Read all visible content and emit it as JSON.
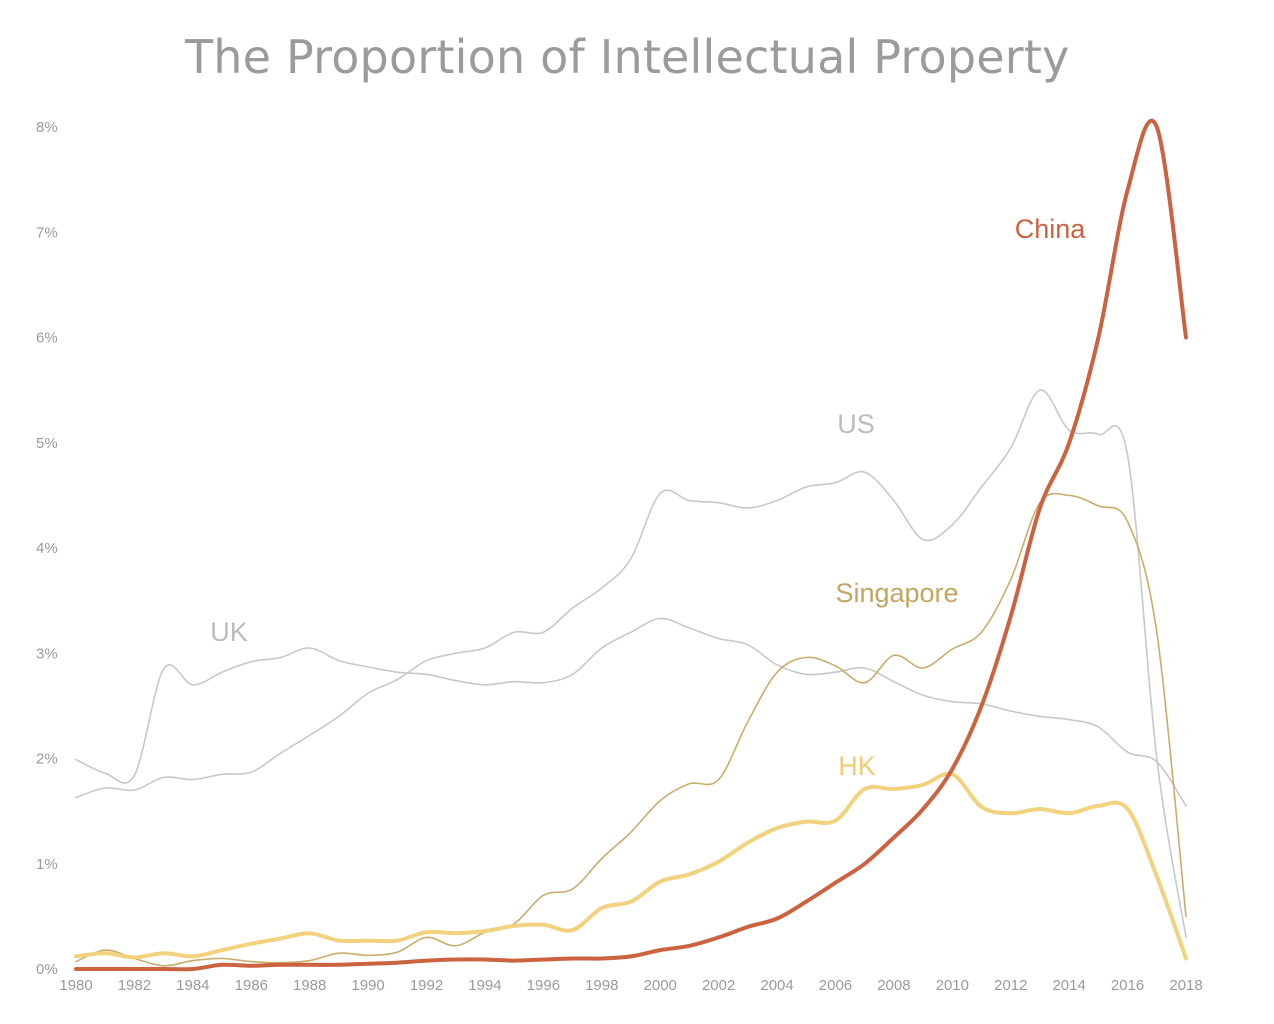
{
  "chart_data": {
    "type": "line",
    "title": "The Proportion of Intellectual Property",
    "xlabel": "",
    "ylabel": "",
    "xlim": [
      1980,
      2018
    ],
    "ylim": [
      0,
      8
    ],
    "grid": false,
    "legend": "inline labels",
    "x_tick_labels": [
      "1980",
      "1982",
      "1984",
      "1986",
      "1988",
      "1990",
      "1992",
      "1994",
      "1996",
      "1998",
      "2000",
      "2002",
      "2004",
      "2006",
      "2008",
      "2010",
      "2012",
      "2014",
      "2016",
      "2018"
    ],
    "y_tick_labels": [
      "0%",
      "1%",
      "2%",
      "3%",
      "4%",
      "5%",
      "6%",
      "7%",
      "8%"
    ],
    "x": [
      1980,
      1981,
      1982,
      1983,
      1984,
      1985,
      1986,
      1987,
      1988,
      1989,
      1990,
      1991,
      1992,
      1993,
      1994,
      1995,
      1996,
      1997,
      1998,
      1999,
      2000,
      2001,
      2002,
      2003,
      2004,
      2005,
      2006,
      2007,
      2008,
      2009,
      2010,
      2011,
      2012,
      2013,
      2014,
      2015,
      2016,
      2017,
      2018
    ],
    "series": [
      {
        "name": "US",
        "color": "#c8c8c8",
        "width": 1.6,
        "values": [
          1.63,
          1.72,
          1.7,
          1.82,
          1.8,
          1.85,
          1.87,
          2.05,
          2.22,
          2.4,
          2.62,
          2.75,
          2.93,
          3.0,
          3.05,
          3.2,
          3.2,
          3.43,
          3.62,
          3.9,
          4.52,
          4.45,
          4.43,
          4.38,
          4.45,
          4.58,
          4.62,
          4.72,
          4.45,
          4.08,
          4.22,
          4.58,
          4.95,
          5.5,
          5.12,
          5.08,
          4.88,
          2.0,
          0.3
        ]
      },
      {
        "name": "UK",
        "color": "#c8c8c8",
        "width": 1.6,
        "values": [
          1.99,
          1.86,
          1.84,
          2.85,
          2.7,
          2.82,
          2.92,
          2.96,
          3.05,
          2.93,
          2.87,
          2.82,
          2.8,
          2.74,
          2.7,
          2.73,
          2.72,
          2.8,
          3.05,
          3.2,
          3.33,
          3.24,
          3.14,
          3.08,
          2.89,
          2.8,
          2.82,
          2.86,
          2.73,
          2.6,
          2.54,
          2.52,
          2.45,
          2.4,
          2.37,
          2.3,
          2.06,
          1.97,
          1.55
        ]
      },
      {
        "name": "Singapore",
        "color": "#c9ad6a",
        "width": 1.6,
        "values": [
          0.07,
          0.18,
          0.1,
          0.03,
          0.08,
          0.1,
          0.07,
          0.06,
          0.08,
          0.15,
          0.13,
          0.16,
          0.3,
          0.22,
          0.35,
          0.43,
          0.7,
          0.76,
          1.05,
          1.3,
          1.6,
          1.76,
          1.8,
          2.35,
          2.82,
          2.96,
          2.88,
          2.72,
          2.98,
          2.86,
          3.04,
          3.2,
          3.7,
          4.43,
          4.5,
          4.4,
          4.25,
          3.2,
          0.5
        ]
      },
      {
        "name": "HK",
        "color": "#f3d27e",
        "width": 4,
        "values": [
          0.12,
          0.15,
          0.11,
          0.15,
          0.12,
          0.18,
          0.24,
          0.29,
          0.34,
          0.27,
          0.27,
          0.27,
          0.35,
          0.34,
          0.36,
          0.41,
          0.42,
          0.37,
          0.58,
          0.64,
          0.83,
          0.9,
          1.02,
          1.2,
          1.34,
          1.4,
          1.41,
          1.71,
          1.71,
          1.75,
          1.85,
          1.54,
          1.48,
          1.52,
          1.48,
          1.55,
          1.52,
          0.88,
          0.1
        ]
      },
      {
        "name": "China",
        "color": "#cb6240",
        "width": 4,
        "values": [
          0.0,
          0.0,
          0.0,
          0.0,
          0.0,
          0.04,
          0.03,
          0.04,
          0.04,
          0.04,
          0.05,
          0.06,
          0.08,
          0.09,
          0.09,
          0.08,
          0.09,
          0.1,
          0.1,
          0.12,
          0.18,
          0.22,
          0.3,
          0.4,
          0.48,
          0.64,
          0.82,
          1.0,
          1.25,
          1.52,
          1.9,
          2.5,
          3.35,
          4.38,
          5.0,
          6.0,
          7.4,
          8.0,
          6.0
        ]
      }
    ],
    "inline_labels": [
      {
        "text": "China",
        "color": "#cb6240"
      },
      {
        "text": "US",
        "color": "#bcbcbc"
      },
      {
        "text": "Singapore",
        "color": "#c2a660"
      },
      {
        "text": "UK",
        "color": "#bcbcbc"
      },
      {
        "text": "HK",
        "color": "#f1cd73"
      }
    ]
  }
}
